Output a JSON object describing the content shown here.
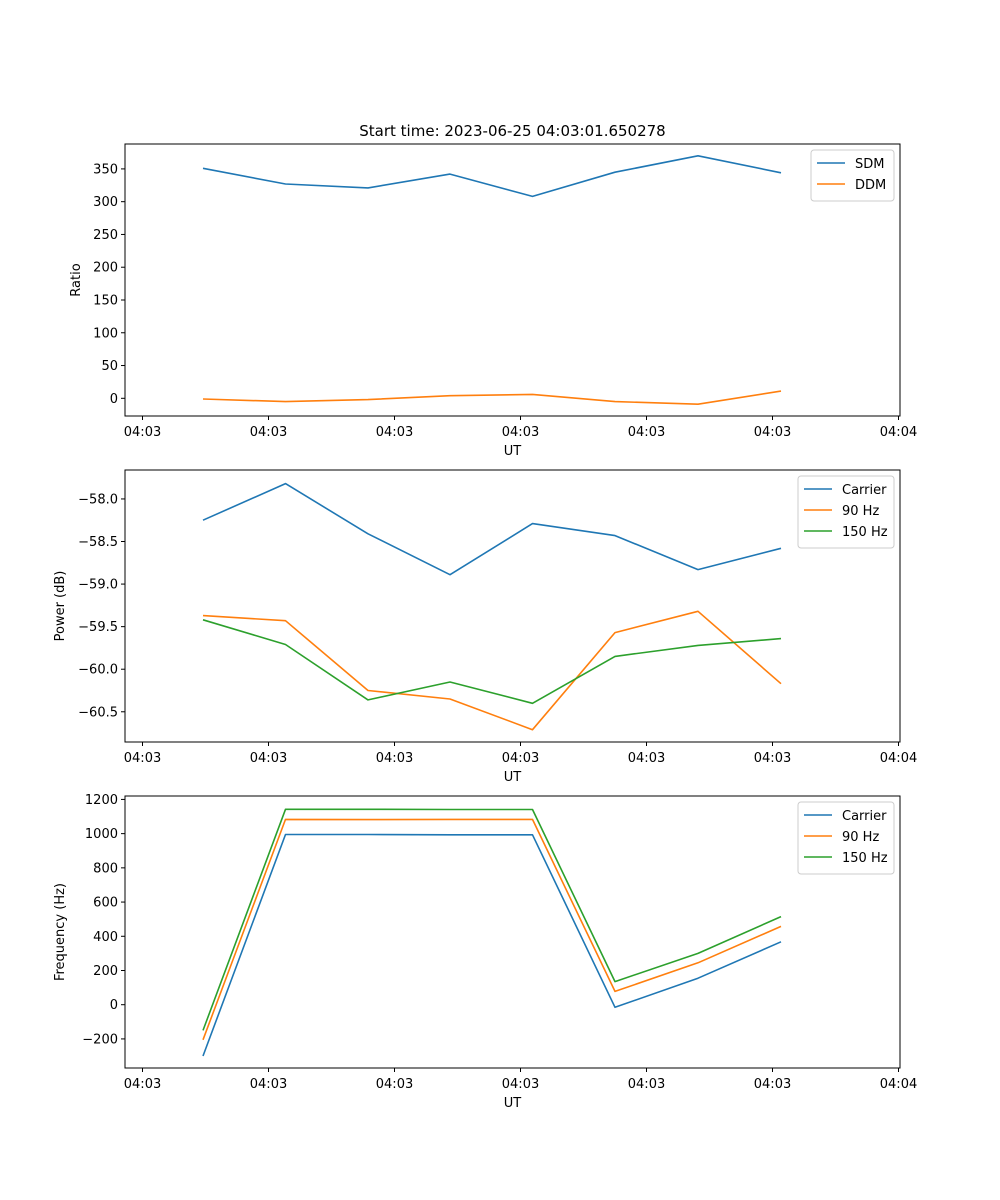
{
  "figure": {
    "title": "Start time: 2023-06-25 04:03:01.650278"
  },
  "colors": {
    "blue": "#1f77b4",
    "orange": "#ff7f0e",
    "green": "#2ca02c"
  },
  "chart_data": [
    {
      "type": "line",
      "title": "Start time: 2023-06-25 04:03:01.650278",
      "xlabel": "UT",
      "ylabel": "Ratio",
      "x_tick_labels": [
        "04:03",
        "04:03",
        "04:03",
        "04:03",
        "04:03",
        "04:03",
        "04:04"
      ],
      "y_ticks": [
        0,
        50,
        100,
        150,
        200,
        250,
        300,
        350
      ],
      "y_tick_labels": [
        "0",
        "50",
        "100",
        "150",
        "200",
        "250",
        "300",
        "350"
      ],
      "ylim": [
        -27,
        388
      ],
      "legend": "top-right",
      "grid": false,
      "series": [
        {
          "name": "SDM",
          "color": "#1f77b4",
          "values": [
            351,
            327,
            321,
            342,
            308,
            345,
            370,
            344
          ]
        },
        {
          "name": "DDM",
          "color": "#ff7f0e",
          "values": [
            -1,
            -5,
            -2,
            4,
            6,
            -5,
            -9,
            11
          ]
        }
      ]
    },
    {
      "type": "line",
      "title": "",
      "xlabel": "UT",
      "ylabel": "Power (dB)",
      "x_tick_labels": [
        "04:03",
        "04:03",
        "04:03",
        "04:03",
        "04:03",
        "04:03",
        "04:04"
      ],
      "y_ticks": [
        -58.0,
        -58.5,
        -59.0,
        -59.5,
        -60.0,
        -60.5
      ],
      "y_tick_labels": [
        "−58.0",
        "−58.5",
        "−59.0",
        "−59.5",
        "−60.0",
        "−60.5"
      ],
      "ylim": [
        -60.855,
        -57.66
      ],
      "legend": "top-right",
      "grid": false,
      "series": [
        {
          "name": "Carrier",
          "color": "#1f77b4",
          "values": [
            -58.25,
            -57.82,
            -58.41,
            -58.89,
            -58.29,
            -58.43,
            -58.83,
            -58.58
          ]
        },
        {
          "name": "90 Hz",
          "color": "#ff7f0e",
          "values": [
            -59.37,
            -59.43,
            -60.25,
            -60.35,
            -60.71,
            -59.57,
            -59.32,
            -60.17
          ]
        },
        {
          "name": "150 Hz",
          "color": "#2ca02c",
          "values": [
            -59.42,
            -59.71,
            -60.36,
            -60.15,
            -60.4,
            -59.85,
            -59.72,
            -59.64
          ]
        }
      ]
    },
    {
      "type": "line",
      "title": "",
      "xlabel": "UT",
      "ylabel": "Frequency (Hz)",
      "x_tick_labels": [
        "04:03",
        "04:03",
        "04:03",
        "04:03",
        "04:03",
        "04:03",
        "04:04"
      ],
      "y_ticks": [
        -200,
        0,
        200,
        400,
        600,
        800,
        1000,
        1200
      ],
      "y_tick_labels": [
        "−200",
        "0",
        "200",
        "400",
        "600",
        "800",
        "1000",
        "1200"
      ],
      "ylim": [
        -370,
        1220
      ],
      "legend": "top-right",
      "grid": false,
      "series": [
        {
          "name": "Carrier",
          "color": "#1f77b4",
          "values": [
            -300,
            995,
            995,
            993,
            993,
            -15,
            155,
            368
          ]
        },
        {
          "name": "90 Hz",
          "color": "#ff7f0e",
          "values": [
            -205,
            1083,
            1082,
            1083,
            1083,
            78,
            245,
            458
          ]
        },
        {
          "name": "150 Hz",
          "color": "#2ca02c",
          "values": [
            -150,
            1142,
            1142,
            1141,
            1141,
            135,
            300,
            515
          ]
        }
      ]
    }
  ]
}
